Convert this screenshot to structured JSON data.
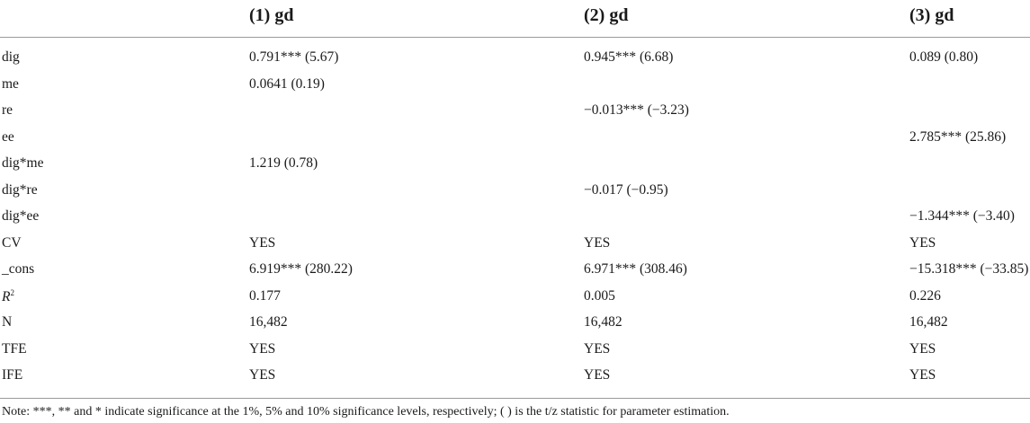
{
  "table": {
    "headers": [
      "",
      "(1) gd",
      "(2) gd",
      "(3) gd"
    ],
    "rows": [
      [
        "dig",
        "0.791*** (5.67)",
        "0.945*** (6.68)",
        "0.089 (0.80)"
      ],
      [
        "me",
        "0.0641 (0.19)",
        "",
        ""
      ],
      [
        "re",
        "",
        "−0.013*** (−3.23)",
        ""
      ],
      [
        "ee",
        "",
        "",
        "2.785*** (25.86)"
      ],
      [
        "dig*me",
        "1.219 (0.78)",
        "",
        ""
      ],
      [
        "dig*re",
        "",
        "−0.017 (−0.95)",
        ""
      ],
      [
        "dig*ee",
        "",
        "",
        "−1.344*** (−3.40)"
      ],
      [
        "CV",
        "YES",
        "YES",
        "YES"
      ],
      [
        "_cons",
        "6.919*** (280.22)",
        "6.971*** (308.46)",
        "−15.318*** (−33.85)"
      ],
      [
        "R",
        "0.177",
        "0.005",
        "0.226"
      ],
      [
        "N",
        "16,482",
        "16,482",
        "16,482"
      ],
      [
        "TFE",
        "YES",
        "YES",
        "YES"
      ],
      [
        "IFE",
        "YES",
        "YES",
        "YES"
      ]
    ],
    "r2_superscript": "2"
  },
  "note": "Note: ***, ** and * indicate significance at the 1%, 5% and 10% significance levels, respectively; ( ) is the t/z statistic for parameter estimation."
}
